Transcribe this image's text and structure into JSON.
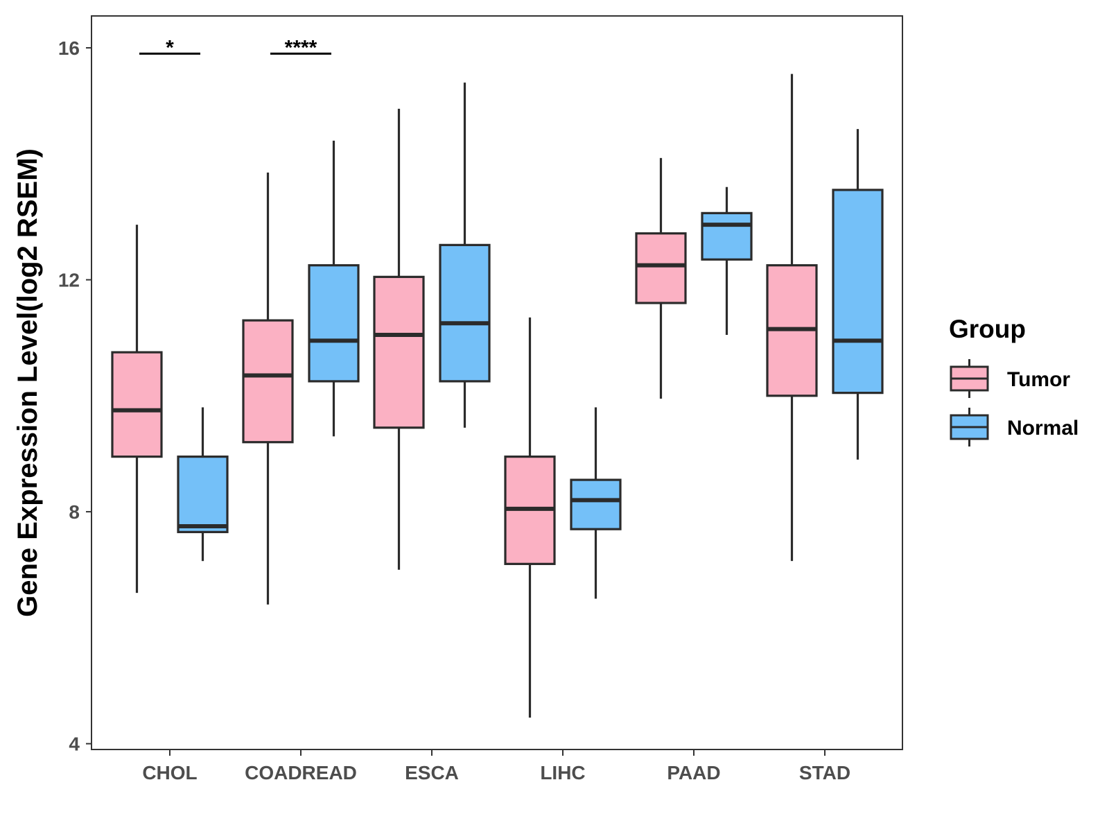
{
  "chart_data": {
    "type": "boxplot",
    "title": "",
    "xlabel": "",
    "ylabel": "Gene Expression Level(log2 RSEM)",
    "ylim": [
      3.9,
      16.55
    ],
    "yticks": [
      4,
      8,
      12,
      16
    ],
    "ytick_labels": [
      "4",
      "8",
      "12",
      "16"
    ],
    "categories": [
      "CHOL",
      "COADREAD",
      "ESCA",
      "LIHC",
      "PAAD",
      "STAD"
    ],
    "legend": {
      "title": "Group",
      "position": "right"
    },
    "series": [
      {
        "name": "Tumor",
        "color": "#FBB1C3",
        "boxes": [
          {
            "category": "CHOL",
            "whisker_low": 6.6,
            "q1": 8.95,
            "median": 9.75,
            "q3": 10.75,
            "whisker_high": 12.95
          },
          {
            "category": "COADREAD",
            "whisker_low": 6.4,
            "q1": 9.2,
            "median": 10.35,
            "q3": 11.3,
            "whisker_high": 13.85
          },
          {
            "category": "ESCA",
            "whisker_low": 7.0,
            "q1": 9.45,
            "median": 11.05,
            "q3": 12.05,
            "whisker_high": 14.95
          },
          {
            "category": "LIHC",
            "whisker_low": 4.45,
            "q1": 7.1,
            "median": 8.05,
            "q3": 8.95,
            "whisker_high": 11.35
          },
          {
            "category": "PAAD",
            "whisker_low": 9.95,
            "q1": 11.6,
            "median": 12.25,
            "q3": 12.8,
            "whisker_high": 14.1
          },
          {
            "category": "STAD",
            "whisker_low": 7.15,
            "q1": 10.0,
            "median": 11.15,
            "q3": 12.25,
            "whisker_high": 15.55
          }
        ]
      },
      {
        "name": "Normal",
        "color": "#74C0F8",
        "boxes": [
          {
            "category": "CHOL",
            "whisker_low": 7.15,
            "q1": 7.65,
            "median": 7.75,
            "q3": 8.95,
            "whisker_high": 9.8
          },
          {
            "category": "COADREAD",
            "whisker_low": 9.3,
            "q1": 10.25,
            "median": 10.95,
            "q3": 12.25,
            "whisker_high": 14.4
          },
          {
            "category": "ESCA",
            "whisker_low": 9.45,
            "q1": 10.25,
            "median": 11.25,
            "q3": 12.6,
            "whisker_high": 15.4
          },
          {
            "category": "LIHC",
            "whisker_low": 6.5,
            "q1": 7.7,
            "median": 8.2,
            "q3": 8.55,
            "whisker_high": 9.8
          },
          {
            "category": "PAAD",
            "whisker_low": 11.05,
            "q1": 12.35,
            "median": 12.95,
            "q3": 13.15,
            "whisker_high": 13.6
          },
          {
            "category": "STAD",
            "whisker_low": 8.9,
            "q1": 10.05,
            "median": 10.95,
            "q3": 13.55,
            "whisker_high": 14.6
          }
        ]
      }
    ],
    "annotations": [
      {
        "category": "CHOL",
        "label": "*",
        "y": 15.9
      },
      {
        "category": "COADREAD",
        "label": "****",
        "y": 15.9
      }
    ]
  }
}
